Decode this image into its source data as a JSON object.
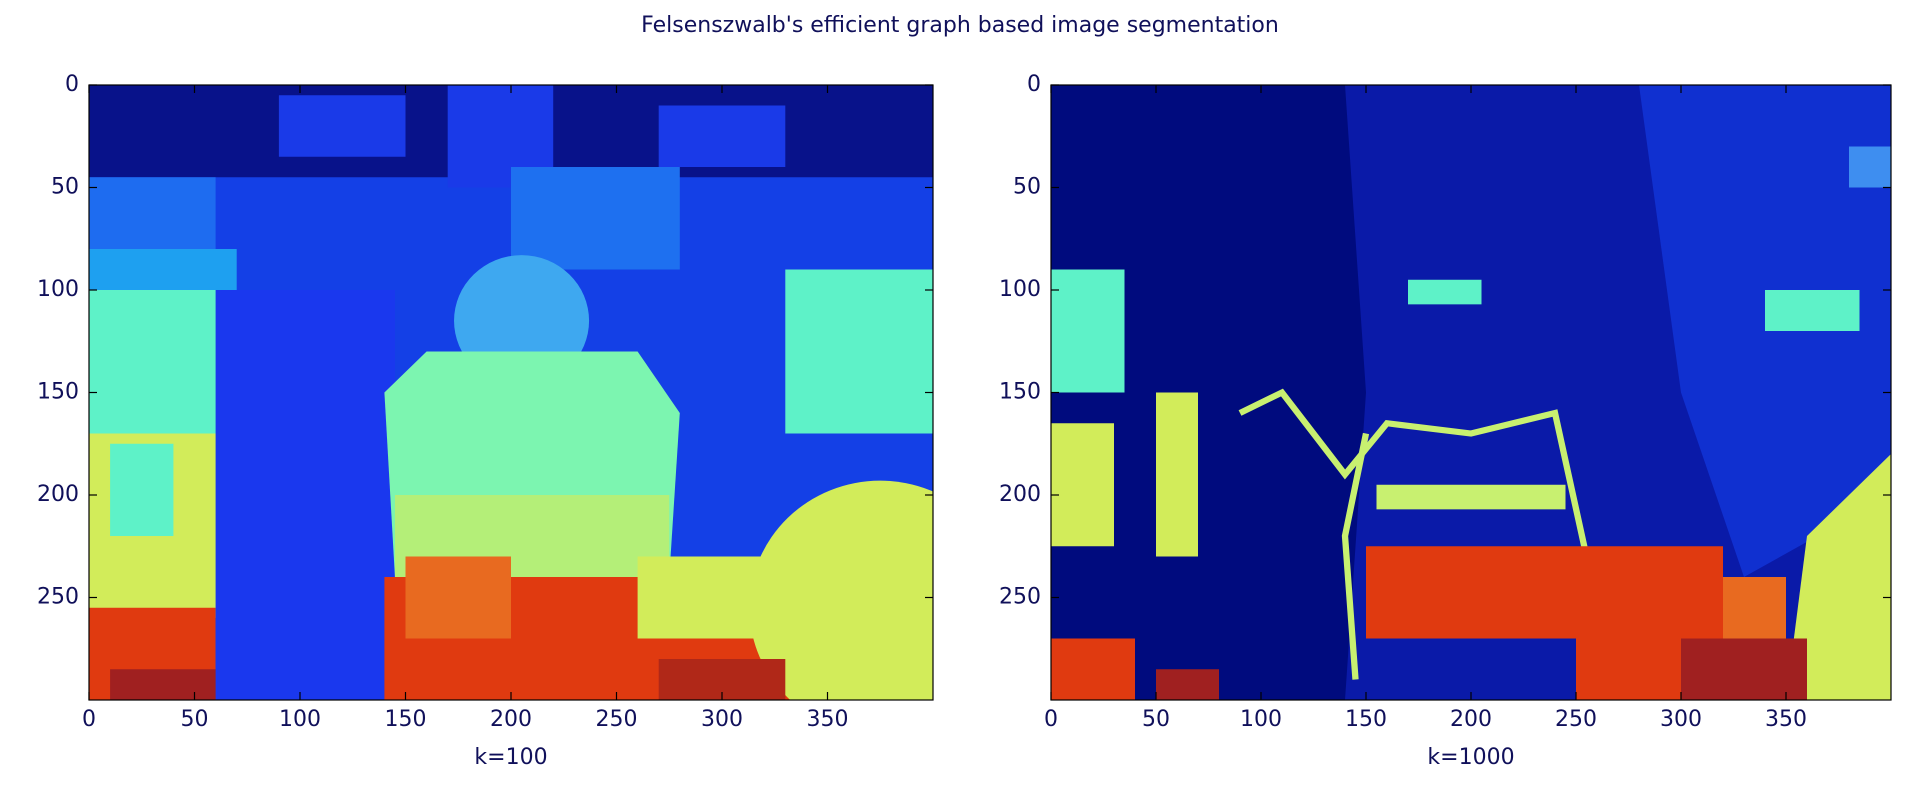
{
  "title": "Felsenszwalb's efficient graph based image segmentation",
  "chart_data": [
    {
      "type": "image",
      "xlabel": "k=100",
      "xlim": [
        0,
        400
      ],
      "ylim": [
        300,
        0
      ],
      "xticks": [
        0,
        50,
        100,
        150,
        200,
        250,
        300,
        350
      ],
      "yticks": [
        0,
        50,
        100,
        150,
        200,
        250
      ]
    },
    {
      "type": "image",
      "xlabel": "k=1000",
      "xlim": [
        0,
        400
      ],
      "ylim": [
        300,
        0
      ],
      "xticks": [
        0,
        50,
        100,
        150,
        200,
        250,
        300,
        350
      ],
      "yticks": [
        0,
        50,
        100,
        150,
        200,
        250
      ]
    }
  ]
}
